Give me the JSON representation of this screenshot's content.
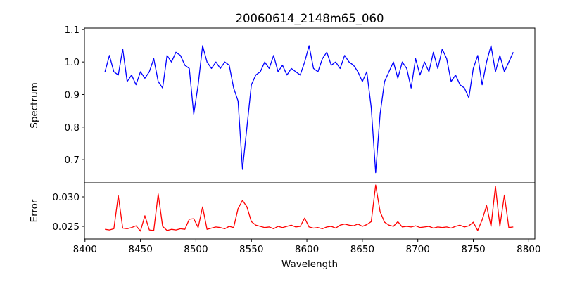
{
  "chart_data": [
    {
      "type": "line",
      "title": "20060614_2148m65_060",
      "xlabel": "",
      "ylabel": "Spectrum",
      "xlim": [
        8399.5,
        8805.5
      ],
      "ylim": [
        0.629,
        1.104
      ],
      "yticks": [
        0.7,
        0.8,
        0.9,
        1.0,
        1.1
      ],
      "ytick_labels": [
        "0.7",
        "0.8",
        "0.9",
        "1.0",
        "1.1"
      ],
      "grid": false,
      "series": [
        {
          "name": "Spectrum",
          "color": "#0000ff",
          "x_start": 8418,
          "x_step": 4,
          "values": [
            0.97,
            1.02,
            0.97,
            0.96,
            1.04,
            0.94,
            0.96,
            0.93,
            0.97,
            0.95,
            0.97,
            1.01,
            0.94,
            0.92,
            1.02,
            1.0,
            1.03,
            1.02,
            0.99,
            0.98,
            0.84,
            0.93,
            1.05,
            1.0,
            0.98,
            1.0,
            0.98,
            1.0,
            0.99,
            0.92,
            0.88,
            0.67,
            0.8,
            0.93,
            0.96,
            0.97,
            1.0,
            0.98,
            1.02,
            0.97,
            0.99,
            0.96,
            0.98,
            0.97,
            0.96,
            1.0,
            1.05,
            0.98,
            0.97,
            1.01,
            1.03,
            0.99,
            1.0,
            0.98,
            1.02,
            1.0,
            0.99,
            0.97,
            0.94,
            0.97,
            0.86,
            0.66,
            0.84,
            0.94,
            0.97,
            1.0,
            0.95,
            1.0,
            0.98,
            0.92,
            1.01,
            0.96,
            1.0,
            0.97,
            1.03,
            0.98,
            1.04,
            1.01,
            0.94,
            0.96,
            0.93,
            0.92,
            0.89,
            0.98,
            1.02,
            0.93,
            1.0,
            1.05,
            0.97,
            1.02,
            0.97,
            1.0,
            1.03
          ]
        }
      ]
    },
    {
      "type": "line",
      "title": "",
      "xlabel": "Wavelength",
      "ylabel": "Error",
      "xlim": [
        8399.5,
        8805.5
      ],
      "ylim": [
        0.02286,
        0.03238
      ],
      "xticks": [
        8400,
        8450,
        8500,
        8550,
        8600,
        8650,
        8700,
        8750,
        8800
      ],
      "xtick_labels": [
        "8400",
        "8450",
        "8500",
        "8550",
        "8600",
        "8650",
        "8700",
        "8750",
        "8800"
      ],
      "yticks": [
        0.025,
        0.03
      ],
      "ytick_labels": [
        "0.025",
        "0.030"
      ],
      "grid": false,
      "series": [
        {
          "name": "Error",
          "color": "#ff0000",
          "x_start": 8418,
          "x_step": 4,
          "values": [
            0.0245,
            0.0244,
            0.0246,
            0.0302,
            0.0247,
            0.0246,
            0.0248,
            0.0251,
            0.0242,
            0.0268,
            0.0244,
            0.0243,
            0.0305,
            0.025,
            0.0243,
            0.0245,
            0.0244,
            0.0246,
            0.0245,
            0.0262,
            0.0263,
            0.0248,
            0.0283,
            0.0245,
            0.0247,
            0.0249,
            0.0248,
            0.0246,
            0.025,
            0.0248,
            0.028,
            0.0294,
            0.0283,
            0.0258,
            0.0252,
            0.025,
            0.0248,
            0.0249,
            0.0246,
            0.025,
            0.0248,
            0.025,
            0.0252,
            0.0249,
            0.025,
            0.0264,
            0.0249,
            0.0247,
            0.0248,
            0.0246,
            0.0249,
            0.025,
            0.0247,
            0.0252,
            0.0254,
            0.0252,
            0.0251,
            0.0254,
            0.025,
            0.0253,
            0.0258,
            0.032,
            0.0275,
            0.0257,
            0.0252,
            0.025,
            0.0258,
            0.0249,
            0.025,
            0.0249,
            0.0251,
            0.0248,
            0.0249,
            0.025,
            0.0247,
            0.0249,
            0.0248,
            0.0249,
            0.0247,
            0.025,
            0.0252,
            0.0249,
            0.0251,
            0.0257,
            0.0243,
            0.0261,
            0.0285,
            0.025,
            0.0318,
            0.025,
            0.0303,
            0.0248,
            0.0249
          ]
        }
      ]
    }
  ]
}
